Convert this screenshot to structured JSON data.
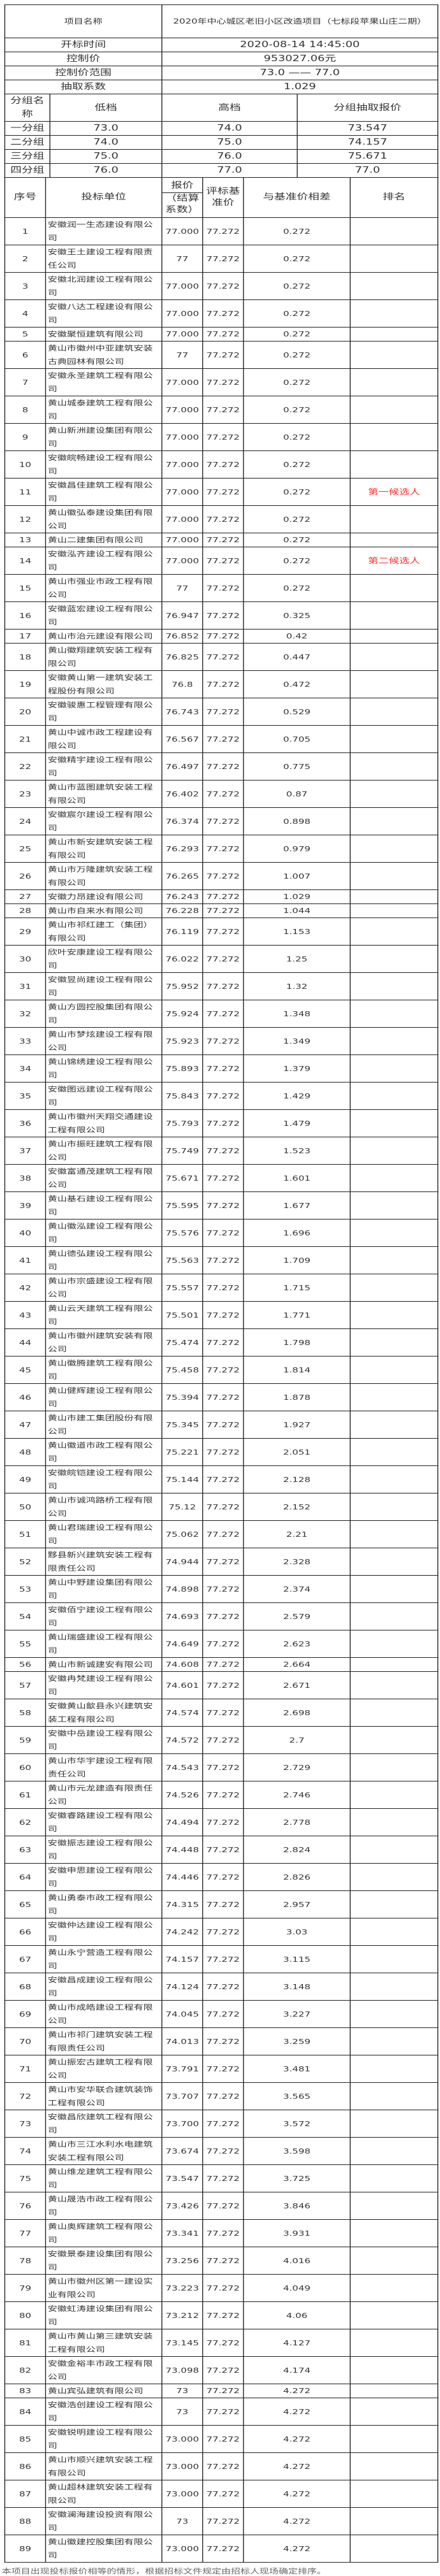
{
  "project": {
    "name_label": "项目名称",
    "name": "2020年中心城区老旧小区改造项目（七标段苹果山庄二期）",
    "open_time_label": "开标时间",
    "open_time": "2020-08-14 14:45:00",
    "control_price_label": "控制价",
    "control_price": "953027.06元",
    "range_label": "控制价范围",
    "range": "73.0 —— 77.0",
    "coef_label": "抽取系数",
    "coef": "1.029"
  },
  "groups": {
    "headers": [
      "分组名称",
      "低档",
      "高档",
      "分组抽取报价"
    ],
    "rows": [
      [
        "一分组",
        "73.0",
        "74.0",
        "73.547"
      ],
      [
        "二分组",
        "74.0",
        "75.0",
        "74.157"
      ],
      [
        "三分组",
        "75.0",
        "76.0",
        "75.671"
      ],
      [
        "四分组",
        "76.0",
        "77.0",
        "77.0"
      ]
    ]
  },
  "table": {
    "headers": {
      "no": "序号",
      "bidder": "投标单位",
      "price_top": "报价",
      "price_bottom": "（结算系数）",
      "base": "评标基准价",
      "diff": "与基准价相差",
      "rank": "排名"
    },
    "rank_color": "#ff2a2a",
    "rows": [
      [
        "1",
        "安徽润一生态建设有限公司",
        "77.000",
        "77.272",
        "0.272",
        ""
      ],
      [
        "2",
        "安徽王土建设工程有限责任公司",
        "77",
        "77.272",
        "0.272",
        ""
      ],
      [
        "3",
        "安徽北润建设工程有限公司",
        "77.000",
        "77.272",
        "0.272",
        ""
      ],
      [
        "4",
        "安徽八达工程建设有限公司",
        "77.000",
        "77.272",
        "0.272",
        ""
      ],
      [
        "5",
        "安徽聚恒建筑有限公司",
        "77.000",
        "77.272",
        "0.272",
        ""
      ],
      [
        "6",
        "黄山市徽州中亚建筑安装古典园林有限公司",
        "77",
        "77.272",
        "0.272",
        ""
      ],
      [
        "7",
        "安徽永圣建筑工程有限公司",
        "77.000",
        "77.272",
        "0.272",
        ""
      ],
      [
        "8",
        "黄山城泰建筑工程有限公司",
        "77.000",
        "77.272",
        "0.272",
        ""
      ],
      [
        "9",
        "黄山新洲建设集团有限公司",
        "77.000",
        "77.272",
        "0.272",
        ""
      ],
      [
        "10",
        "安徽皖畅建设工程有限公司",
        "77.000",
        "77.272",
        "0.272",
        ""
      ],
      [
        "11",
        "安徽昌佳建筑工程有限公司",
        "77.000",
        "77.272",
        "0.272",
        "第一候选人"
      ],
      [
        "12",
        "黄山徽弘泰建设集团有限公司",
        "77.000",
        "77.272",
        "0.272",
        ""
      ],
      [
        "13",
        "黄山二建集团有限公司",
        "77.000",
        "77.272",
        "0.272",
        ""
      ],
      [
        "14",
        "安徽泓齐建设工程有限公司",
        "77.000",
        "77.272",
        "0.272",
        "第二候选人"
      ],
      [
        "15",
        "黄山市强业市政工程有限公司",
        "77",
        "77.272",
        "0.272",
        ""
      ],
      [
        "16",
        "安徽蓝宏建设工程有限公司",
        "76.947",
        "77.272",
        "0.325",
        ""
      ],
      [
        "17",
        "黄山市治元建设有限公司",
        "76.852",
        "77.272",
        "0.42",
        ""
      ],
      [
        "18",
        "黄山徽翔建筑安装工程有限公司",
        "76.825",
        "77.272",
        "0.447",
        ""
      ],
      [
        "19",
        "安徽黄山第一建筑安装工程股份有限公司",
        "76.8",
        "77.272",
        "0.472",
        ""
      ],
      [
        "20",
        "安徽骏惠工程管理有限公司",
        "76.743",
        "77.272",
        "0.529",
        ""
      ],
      [
        "21",
        "黄山中诚市政工程建设有限公司",
        "76.567",
        "77.272",
        "0.705",
        ""
      ],
      [
        "22",
        "安徽精宇建设工程有限公司",
        "76.497",
        "77.272",
        "0.775",
        ""
      ],
      [
        "23",
        "黄山市蓝图建筑安装工程有限公司",
        "76.402",
        "77.272",
        "0.87",
        ""
      ],
      [
        "24",
        "安徽宸尔建设工程有限公司",
        "76.374",
        "77.272",
        "0.898",
        ""
      ],
      [
        "25",
        "黄山市新安建筑安装工程有限公司",
        "76.293",
        "77.272",
        "0.979",
        ""
      ],
      [
        "26",
        "黄山市万隆建筑安装工程有限公司",
        "76.265",
        "77.272",
        "1.007",
        ""
      ],
      [
        "27",
        "安徽力昂建设有限公司",
        "76.243",
        "77.272",
        "1.029",
        ""
      ],
      [
        "28",
        "黄山市自来水有限公司",
        "76.228",
        "77.272",
        "1.044",
        ""
      ],
      [
        "29",
        "黄山市祁红建工（集团）有限公司",
        "76.119",
        "77.272",
        "1.153",
        ""
      ],
      [
        "30",
        "欣叶安康建设工程有限公司",
        "76.022",
        "77.272",
        "1.25",
        ""
      ],
      [
        "31",
        "安徽昱尚建设工程有限公司",
        "75.952",
        "77.272",
        "1.32",
        ""
      ],
      [
        "32",
        "黄山方圆控股集团有限公司",
        "75.924",
        "77.272",
        "1.348",
        ""
      ],
      [
        "33",
        "黄山市梦炫建设工程有限公司",
        "75.923",
        "77.272",
        "1.349",
        ""
      ],
      [
        "34",
        "黄山锦绣建设工程有限公司",
        "75.893",
        "77.272",
        "1.379",
        ""
      ],
      [
        "35",
        "安徽图远建设工程有限公司",
        "75.843",
        "77.272",
        "1.429",
        ""
      ],
      [
        "36",
        "黄山市徽州天翔交通建设工程有限公司",
        "75.793",
        "77.272",
        "1.479",
        ""
      ],
      [
        "37",
        "黄山市振旺建筑工程有限公司",
        "75.749",
        "77.272",
        "1.523",
        ""
      ],
      [
        "38",
        "安徽富通茂建筑工程有限公司",
        "75.671",
        "77.272",
        "1.601",
        ""
      ],
      [
        "39",
        "黄山基石建设工程有限公司",
        "75.595",
        "77.272",
        "1.677",
        ""
      ],
      [
        "40",
        "黄山徽泓建设工程有限公司",
        "75.576",
        "77.272",
        "1.696",
        ""
      ],
      [
        "41",
        "黄山德弘建设工程有限公司",
        "75.563",
        "77.272",
        "1.709",
        ""
      ],
      [
        "42",
        "黄山市宗盛建设工程有限公司",
        "75.557",
        "77.272",
        "1.715",
        ""
      ],
      [
        "43",
        "黄山云天建筑工程有限公司",
        "75.501",
        "77.272",
        "1.771",
        ""
      ],
      [
        "44",
        "黄山市徽州建筑安装有限公司",
        "75.474",
        "77.272",
        "1.798",
        ""
      ],
      [
        "45",
        "黄山徽腾建筑工程有限公司",
        "75.458",
        "77.272",
        "1.814",
        ""
      ],
      [
        "46",
        "黄山健辉建设工程有限公司",
        "75.394",
        "77.272",
        "1.878",
        ""
      ],
      [
        "47",
        "黄山市建工集团股份有限公司",
        "75.345",
        "77.272",
        "1.927",
        ""
      ],
      [
        "48",
        "黄山徽道市政工程有限公司",
        "75.221",
        "77.272",
        "2.051",
        ""
      ],
      [
        "49",
        "安徽皖铠建设工程有限公司",
        "75.144",
        "77.272",
        "2.128",
        ""
      ],
      [
        "50",
        "黄山市诚鸿路桥工程有限公司",
        "75.12",
        "77.272",
        "2.152",
        ""
      ],
      [
        "51",
        "黄山君瑞建设工程有限公司",
        "75.062",
        "77.272",
        "2.21",
        ""
      ],
      [
        "52",
        "黟县新兴建筑安装工程有限责任公司",
        "74.944",
        "77.272",
        "2.328",
        ""
      ],
      [
        "53",
        "黄山中野建设集团有限公司",
        "74.898",
        "77.272",
        "2.374",
        ""
      ],
      [
        "54",
        "安徽佰宁建设工程有限公司",
        "74.693",
        "77.272",
        "2.579",
        ""
      ],
      [
        "55",
        "黄山瑞盛建设工程有限公司",
        "74.649",
        "77.272",
        "2.623",
        ""
      ],
      [
        "56",
        "黄山市新诚建安有限公司",
        "74.608",
        "77.272",
        "2.664",
        ""
      ],
      [
        "57",
        "安徽冉梵建设工程有限公司",
        "74.601",
        "77.272",
        "2.671",
        ""
      ],
      [
        "58",
        "安徽黄山歙县永兴建筑安装工程有限公司",
        "74.574",
        "77.272",
        "2.698",
        ""
      ],
      [
        "59",
        "安徽中岳建设工程有限公司",
        "74.572",
        "77.272",
        "2.7",
        ""
      ],
      [
        "60",
        "黄山市华宇建设工程有限责任公司",
        "74.543",
        "77.272",
        "2.729",
        ""
      ],
      [
        "61",
        "黄山市元龙建造有限责任公司",
        "74.526",
        "77.272",
        "2.746",
        ""
      ],
      [
        "62",
        "安徽睿路建设工程有限公司",
        "74.494",
        "77.272",
        "2.778",
        ""
      ],
      [
        "63",
        "安徽振志建设工程有限公司",
        "74.448",
        "77.272",
        "2.824",
        ""
      ],
      [
        "64",
        "安徽申思建设工程有限公司",
        "74.446",
        "77.272",
        "2.826",
        ""
      ],
      [
        "65",
        "黄山勇泰市政工程有限公司",
        "74.315",
        "77.272",
        "2.957",
        ""
      ],
      [
        "66",
        "安徽仲达建设工程有限公司",
        "74.242",
        "77.272",
        "3.03",
        ""
      ],
      [
        "67",
        "黄山永宁营造工程有限公司",
        "74.157",
        "77.272",
        "3.115",
        ""
      ],
      [
        "68",
        "安徽昌成建设工程有限公司",
        "74.124",
        "77.272",
        "3.148",
        ""
      ],
      [
        "69",
        "黄山市成皓建设工程有限公司",
        "74.045",
        "77.272",
        "3.227",
        ""
      ],
      [
        "70",
        "黄山市祁门建筑安装工程有限责任公司",
        "74.013",
        "77.272",
        "3.259",
        ""
      ],
      [
        "71",
        "黄山振宏古建筑工程有限公司",
        "73.791",
        "77.272",
        "3.481",
        ""
      ],
      [
        "72",
        "黄山市安华联合建筑装饰工程有限公司",
        "73.707",
        "77.272",
        "3.565",
        ""
      ],
      [
        "73",
        "安徽昌欣建筑工程有限公司",
        "73.700",
        "77.272",
        "3.572",
        ""
      ],
      [
        "74",
        "黄山市三江水利水电建筑安装工程有限公司",
        "73.674",
        "77.272",
        "3.598",
        ""
      ],
      [
        "75",
        "黄山维龙建筑工程有限公司",
        "73.547",
        "77.272",
        "3.725",
        ""
      ],
      [
        "76",
        "黄山晟浩市政工程有限公司",
        "73.426",
        "77.272",
        "3.846",
        ""
      ],
      [
        "77",
        "黄山奥辉建筑工程有限公司",
        "73.341",
        "77.272",
        "3.931",
        ""
      ],
      [
        "78",
        "安徽景泰建设集团有限公司",
        "73.256",
        "77.272",
        "4.016",
        ""
      ],
      [
        "79",
        "黄山市徽州区第一建设实业有限公司",
        "73.223",
        "77.272",
        "4.049",
        ""
      ],
      [
        "80",
        "安徽虹涛建设集团有限公司",
        "73.212",
        "77.272",
        "4.06",
        ""
      ],
      [
        "81",
        "黄山市黄山第三建筑安装工程有限公司",
        "73.145",
        "77.272",
        "4.127",
        ""
      ],
      [
        "82",
        "安徽金裕丰市政工程有限公司",
        "73.098",
        "77.272",
        "4.174",
        ""
      ],
      [
        "83",
        "黄山宾弘建筑有限公司",
        "73",
        "77.272",
        "4.272",
        ""
      ],
      [
        "84",
        "安徽浩创建设工程有限公司",
        "73",
        "77.272",
        "4.272",
        ""
      ],
      [
        "85",
        "安徽锐明建设工程有限公司",
        "73.000",
        "77.272",
        "4.272",
        ""
      ],
      [
        "86",
        "黄山市顺兴建筑安装工程有限公司",
        "73.000",
        "77.272",
        "4.272",
        ""
      ],
      [
        "87",
        "黄山超林建筑安装工程有限公司",
        "73.000",
        "77.272",
        "4.272",
        ""
      ],
      [
        "88",
        "安徽澜海建设投资有限公司",
        "73",
        "77.272",
        "4.272",
        ""
      ],
      [
        "89",
        "黄山徽建控股集团有限公司",
        "73.000",
        "77.272",
        "4.272",
        ""
      ]
    ]
  },
  "footer": "本项目出现投标报价相等的情形，根据招标文件规定由招标人现场确定排序。"
}
